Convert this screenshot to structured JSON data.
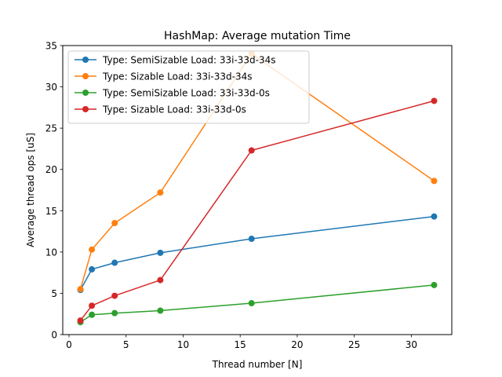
{
  "chart_data": {
    "type": "line",
    "title": "HashMap: Average mutation Time",
    "xlabel": "Thread number [N]",
    "ylabel": "Average thread ops [uS]",
    "xlim": [
      -0.55,
      33.55
    ],
    "ylim": [
      0,
      35
    ],
    "xticks": [
      0,
      5,
      10,
      15,
      20,
      25,
      30
    ],
    "yticks": [
      0,
      5,
      10,
      15,
      20,
      25,
      30,
      35
    ],
    "grid": false,
    "legend_position": "top-left",
    "x": [
      1,
      2,
      4,
      8,
      16,
      32
    ],
    "series": [
      {
        "name": "Type: SemiSizable Load: 33i-33d-34s",
        "color": "#1f77b4",
        "values": [
          5.4,
          7.9,
          8.7,
          9.9,
          11.6,
          14.3
        ]
      },
      {
        "name": "Type: Sizable Load: 33i-33d-34s",
        "color": "#ff7f0e",
        "values": [
          5.5,
          10.3,
          13.5,
          17.2,
          34.0,
          18.6
        ]
      },
      {
        "name": "Type: SemiSizable Load: 33i-33d-0s",
        "color": "#2ca02c",
        "values": [
          1.5,
          2.4,
          2.6,
          2.9,
          3.8,
          6.0
        ]
      },
      {
        "name": "Type: Sizable Load: 33i-33d-0s",
        "color": "#d62728",
        "values": [
          1.7,
          3.5,
          4.7,
          6.6,
          22.3,
          28.3
        ]
      }
    ]
  }
}
